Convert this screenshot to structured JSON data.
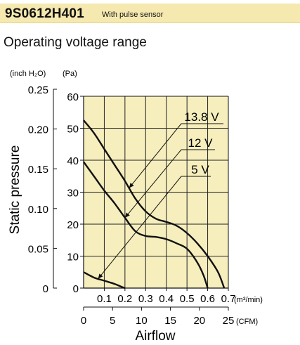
{
  "header": {
    "model": "9S0612H401",
    "subtitle": "With pulse sensor"
  },
  "section_title": "Operating voltage range",
  "chart_data": {
    "type": "line",
    "xlabel": "Airflow",
    "ylabel": "Static pressure",
    "y_left_unit": "(inch H₂O)",
    "y_right_unit": "(Pa)",
    "x_top_unit": "(m³/min)",
    "x_bottom_unit": "(CFM)",
    "x_top_ticks": [
      "0.1",
      "0.2",
      "0.3",
      "0.4",
      "0.5",
      "0.6",
      "0.7"
    ],
    "x_bottom_ticks": [
      "0",
      "5",
      "10",
      "15",
      "20",
      "25"
    ],
    "y_left_ticks": [
      "0.25",
      "0.20",
      "0.15",
      "0.10",
      "0.05",
      "0"
    ],
    "y_right_ticks": [
      "60",
      "50",
      "40",
      "30",
      "20",
      "10",
      "0"
    ],
    "xlim": [
      0,
      0.7
    ],
    "ylim": [
      0,
      60
    ],
    "grid": true,
    "background": "#f6eebd",
    "series": [
      {
        "name": "13.8 V",
        "x": [
          0,
          0.05,
          0.1,
          0.15,
          0.2,
          0.25,
          0.3,
          0.35,
          0.4,
          0.45,
          0.5,
          0.55,
          0.6,
          0.65,
          0.68
        ],
        "y": [
          52.5,
          48.5,
          43.5,
          38.5,
          33.5,
          28,
          24,
          21.7,
          20.7,
          19.5,
          17.2,
          14,
          10,
          5,
          0
        ]
      },
      {
        "name": "12 V",
        "x": [
          0,
          0.05,
          0.1,
          0.15,
          0.2,
          0.25,
          0.3,
          0.35,
          0.4,
          0.45,
          0.5,
          0.55,
          0.58,
          0.6
        ],
        "y": [
          39.5,
          35,
          30.5,
          26.5,
          22,
          17.8,
          16.3,
          16,
          15.3,
          14,
          12.3,
          8,
          4,
          0
        ]
      },
      {
        "name": "5 V",
        "x": [
          0,
          0.05,
          0.1,
          0.15,
          0.18,
          0.2
        ],
        "y": [
          5,
          3.3,
          2.3,
          1.3,
          0.5,
          0
        ]
      }
    ]
  }
}
